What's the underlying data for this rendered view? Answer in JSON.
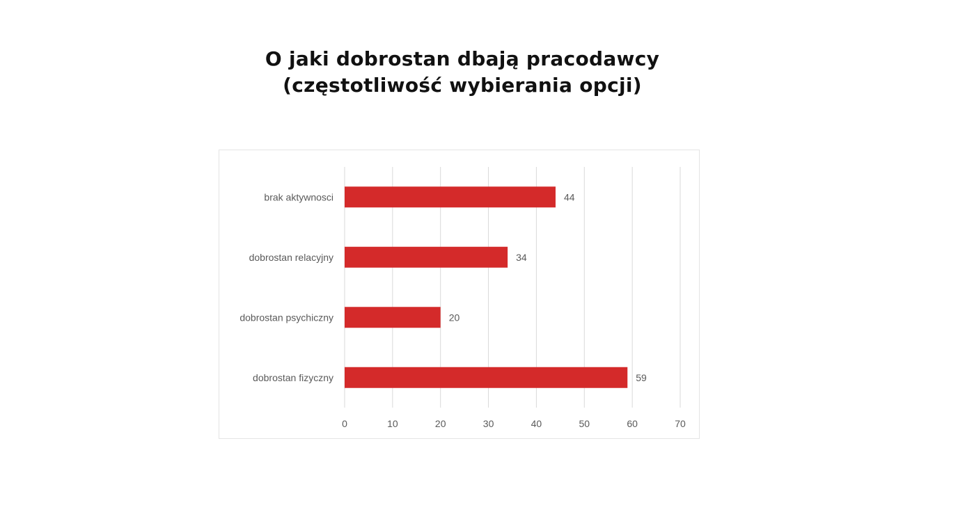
{
  "title": {
    "line1": "O jaki dobrostan dbają pracodawcy",
    "line2": "(częstotliwość wybierania opcji)"
  },
  "colors": {
    "bar": "#d42a2a",
    "grid": "#d9d9d9",
    "text": "#595959"
  },
  "chart_data": {
    "type": "bar",
    "orientation": "horizontal",
    "categories": [
      "brak aktywnosci",
      "dobrostan relacyjny",
      "dobrostan psychiczny",
      "dobrostan fizyczny"
    ],
    "values": [
      44,
      34,
      20,
      59
    ],
    "data_labels": [
      "44",
      "34",
      "20",
      "59"
    ],
    "xlim": [
      0,
      70
    ],
    "xticks": [
      "0",
      "10",
      "20",
      "30",
      "40",
      "50",
      "60",
      "70"
    ],
    "grid": true,
    "legend": "none"
  }
}
